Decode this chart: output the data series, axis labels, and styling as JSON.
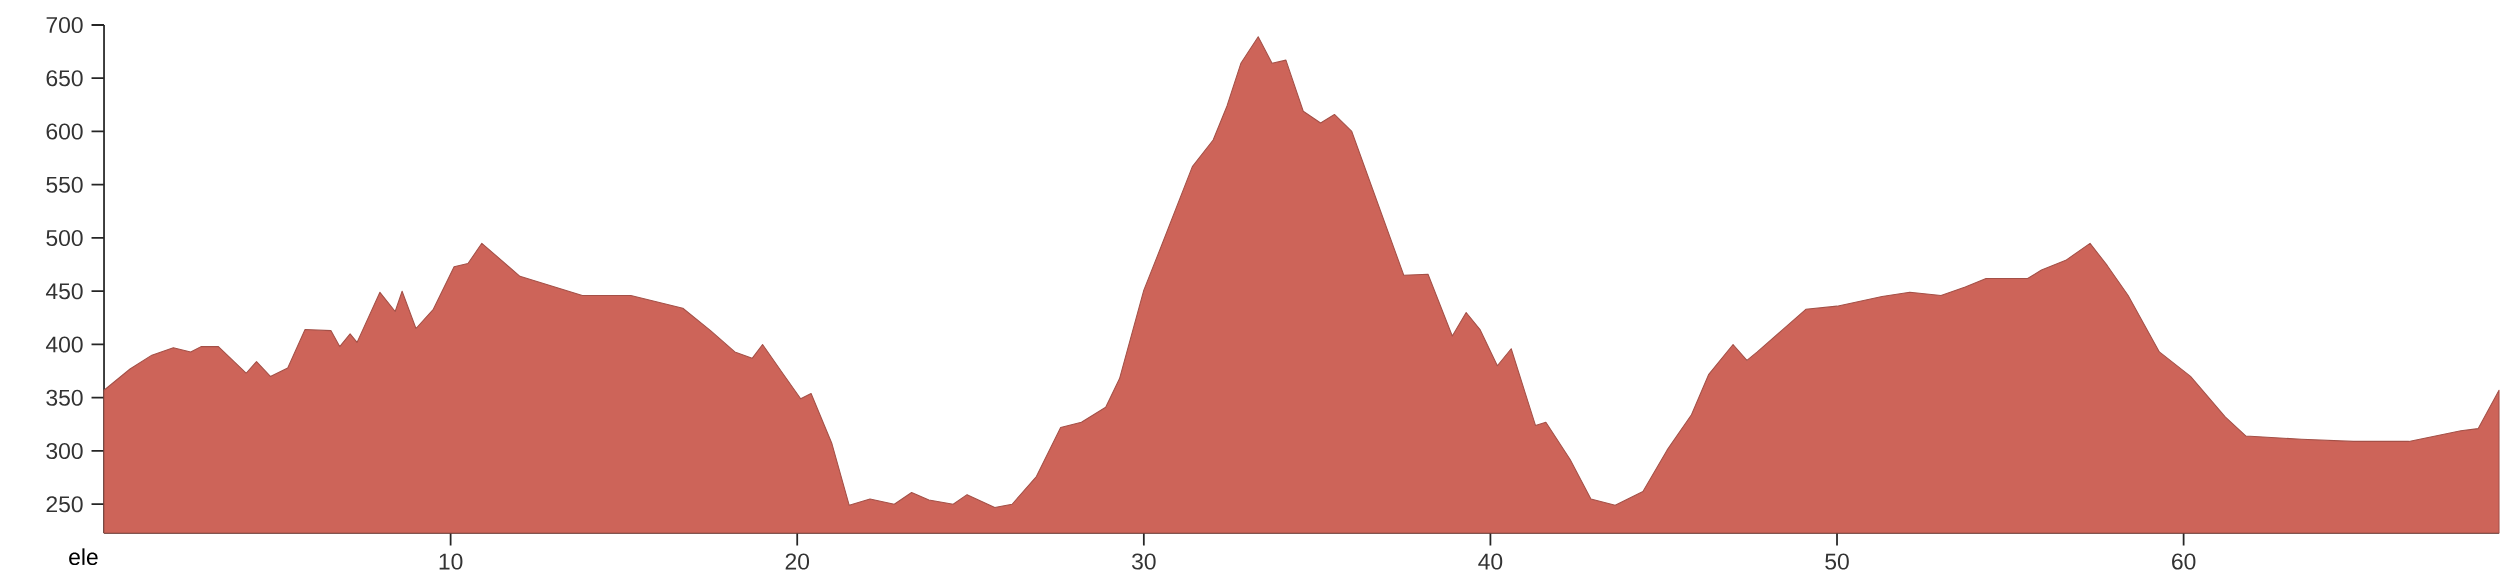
{
  "chart_data": {
    "type": "area",
    "ylabel": "ele",
    "color": "#cd6459",
    "x": [
      0,
      0.75,
      1.38,
      2.0,
      2.5,
      2.8,
      3.3,
      4.1,
      4.4,
      4.8,
      5.3,
      5.8,
      6.55,
      6.8,
      7.1,
      7.3,
      7.96,
      8.4,
      8.6,
      9.0,
      9.5,
      10.1,
      10.5,
      10.9,
      12.0,
      13.8,
      15.2,
      16.7,
      17.5,
      18.2,
      18.7,
      19.0,
      19.6,
      20.1,
      20.4,
      21.0,
      21.5,
      22.1,
      22.8,
      23.3,
      23.8,
      24.5,
      24.9,
      25.7,
      26.2,
      26.9,
      27.6,
      28.2,
      28.9,
      29.3,
      30.0,
      30.5,
      31.4,
      32.0,
      32.4,
      32.8,
      33.3,
      33.7,
      34.1,
      34.6,
      35.1,
      35.5,
      36.0,
      36.6,
      37.5,
      38.2,
      38.9,
      39.3,
      39.7,
      40.2,
      40.6,
      41.3,
      41.6,
      42.3,
      42.9,
      43.6,
      44.4,
      45.1,
      45.8,
      46.3,
      47.0,
      47.4,
      47.7,
      48.4,
      49.1,
      50.0,
      51.3,
      52.1,
      53.0,
      53.7,
      54.3,
      55.5,
      55.9,
      56.6,
      57.3,
      57.8,
      58.4,
      59.3,
      60.2,
      61.2,
      61.8,
      63.4,
      64.9,
      66.5,
      68.0,
      68.5,
      69.1
    ],
    "values": [
      357,
      377,
      390,
      397,
      393,
      398,
      398,
      373,
      384,
      370,
      378,
      414,
      413,
      398,
      410,
      402,
      449,
      431,
      450,
      415,
      433,
      473,
      476,
      495,
      464,
      446,
      446,
      434,
      413,
      393,
      387,
      400,
      372,
      349,
      354,
      307,
      249,
      255,
      250,
      261,
      254,
      250,
      259,
      247,
      250,
      276,
      322,
      327,
      341,
      368,
      451,
      492,
      567,
      592,
      624,
      664,
      689,
      664,
      667,
      619,
      608,
      616,
      600,
      546,
      465,
      466,
      408,
      430,
      414,
      380,
      396,
      324,
      327,
      292,
      255,
      249,
      262,
      301,
      334,
      372,
      400,
      385,
      393,
      413,
      433,
      436,
      445,
      449,
      446,
      454,
      462,
      462,
      470,
      479,
      495,
      474,
      446,
      393,
      370,
      332,
      314,
      311,
      309,
      309,
      319,
      321,
      357
    ],
    "xlim": [
      0,
      69.1
    ],
    "ylim": [
      223,
      700
    ],
    "xticks": [
      10,
      20,
      30,
      40,
      50,
      60
    ],
    "yticks": [
      250,
      300,
      350,
      400,
      450,
      500,
      550,
      600,
      650,
      700
    ]
  }
}
